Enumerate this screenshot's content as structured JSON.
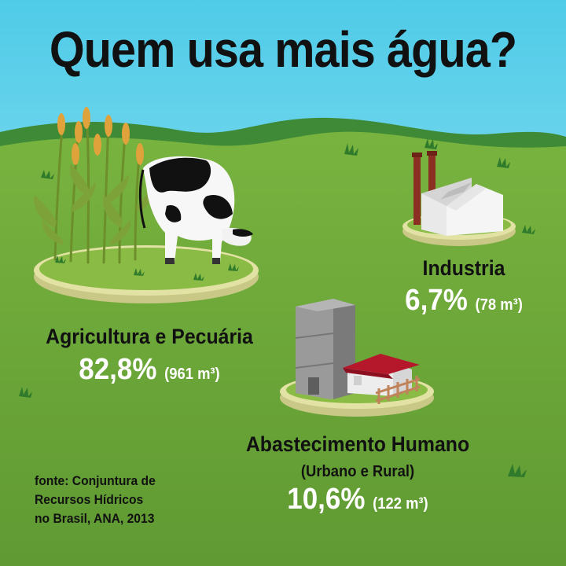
{
  "chart_data": {
    "type": "infographic",
    "title": "Quem usa mais água?",
    "categories": [
      {
        "name": "Agricultura e Pecuária",
        "subtitle": "",
        "percent": 82.8,
        "percent_label": "82,8%",
        "volume": 961,
        "volume_label": "(961 m³)"
      },
      {
        "name": "Industria",
        "subtitle": "",
        "percent": 6.7,
        "percent_label": "6,7%",
        "volume": 78,
        "volume_label": "(78 m³)"
      },
      {
        "name": "Abastecimento Humano",
        "subtitle": "(Urbano e Rural)",
        "percent": 10.6,
        "percent_label": "10,6%",
        "volume": 122,
        "volume_label": "(122 m³)"
      }
    ],
    "source": [
      "fonte: Conjuntura de",
      "Recursos Hídricos",
      "no Brasil, ANA, 2013"
    ]
  },
  "colors": {
    "sky": "#7fd6ee",
    "grass": "#6da638",
    "text": "#111111",
    "value_text": "#ffffff"
  },
  "icons": [
    "corn-plants-icon",
    "cow-icon",
    "factory-icon",
    "water-tower-icon",
    "house-icon",
    "fence-icon",
    "grass-tuft-icon"
  ]
}
